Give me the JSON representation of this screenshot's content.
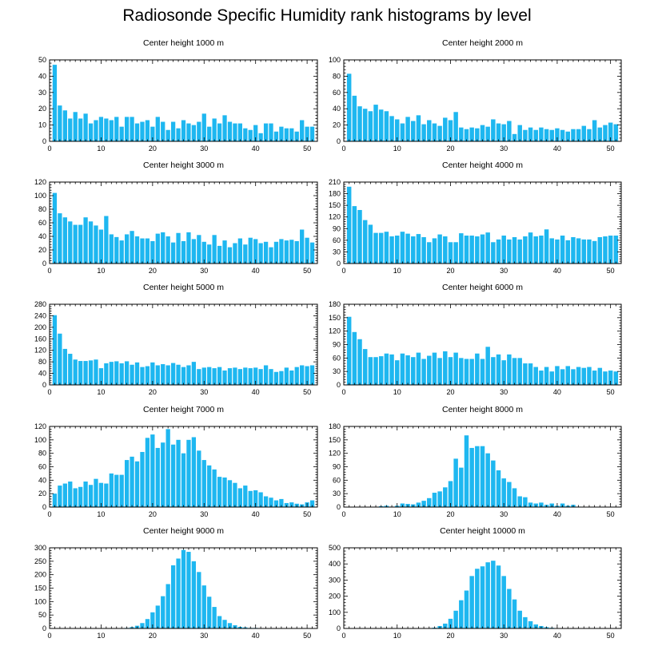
{
  "title": "Radiosonde Specific Humidity rank histograms by level",
  "bar_color": "#1eb7f0",
  "chart_data": [
    {
      "type": "bar",
      "title": "Center height 1000 m",
      "xlabel": "",
      "ylabel": "",
      "xlim": [
        0,
        52
      ],
      "ylim": [
        0,
        50
      ],
      "x": [
        1,
        2,
        3,
        4,
        5,
        6,
        7,
        8,
        9,
        10,
        11,
        12,
        13,
        14,
        15,
        16,
        17,
        18,
        19,
        20,
        21,
        22,
        23,
        24,
        25,
        26,
        27,
        28,
        29,
        30,
        31,
        32,
        33,
        34,
        35,
        36,
        37,
        38,
        39,
        40,
        41,
        42,
        43,
        44,
        45,
        46,
        47,
        48,
        49,
        50,
        51
      ],
      "values": [
        47,
        22,
        19,
        14,
        18,
        14,
        17,
        11,
        13,
        15,
        14,
        13,
        15,
        9,
        15,
        15,
        11,
        12,
        13,
        9,
        15,
        12,
        7,
        12,
        8,
        13,
        11,
        10,
        12,
        17,
        9,
        14,
        11,
        16,
        12,
        11,
        11,
        8,
        7,
        10,
        5,
        11,
        11,
        6,
        9,
        8,
        8,
        6,
        13,
        9,
        9
      ],
      "xticks": [
        "0",
        "10",
        "20",
        "30",
        "40",
        "50"
      ],
      "yticks": [
        "0",
        "10",
        "20",
        "30",
        "40",
        "50"
      ]
    },
    {
      "type": "bar",
      "title": "Center height 2000 m",
      "xlabel": "",
      "ylabel": "",
      "xlim": [
        0,
        52
      ],
      "ylim": [
        0,
        100
      ],
      "x": [
        1,
        2,
        3,
        4,
        5,
        6,
        7,
        8,
        9,
        10,
        11,
        12,
        13,
        14,
        15,
        16,
        17,
        18,
        19,
        20,
        21,
        22,
        23,
        24,
        25,
        26,
        27,
        28,
        29,
        30,
        31,
        32,
        33,
        34,
        35,
        36,
        37,
        38,
        39,
        40,
        41,
        42,
        43,
        44,
        45,
        46,
        47,
        48,
        49,
        50,
        51
      ],
      "values": [
        83,
        56,
        43,
        40,
        37,
        45,
        39,
        37,
        31,
        27,
        22,
        30,
        25,
        32,
        21,
        26,
        22,
        19,
        29,
        26,
        36,
        17,
        15,
        17,
        16,
        20,
        18,
        27,
        22,
        21,
        25,
        9,
        20,
        14,
        17,
        14,
        17,
        15,
        14,
        16,
        14,
        12,
        15,
        15,
        19,
        15,
        26,
        17,
        20,
        23,
        21
      ],
      "xticks": [
        "0",
        "10",
        "20",
        "30",
        "40",
        "50"
      ],
      "yticks": [
        "0",
        "20",
        "40",
        "60",
        "80",
        "100"
      ]
    },
    {
      "type": "bar",
      "title": "Center height 3000 m",
      "xlabel": "",
      "ylabel": "",
      "xlim": [
        0,
        52
      ],
      "ylim": [
        0,
        120
      ],
      "x": [
        1,
        2,
        3,
        4,
        5,
        6,
        7,
        8,
        9,
        10,
        11,
        12,
        13,
        14,
        15,
        16,
        17,
        18,
        19,
        20,
        21,
        22,
        23,
        24,
        25,
        26,
        27,
        28,
        29,
        30,
        31,
        32,
        33,
        34,
        35,
        36,
        37,
        38,
        39,
        40,
        41,
        42,
        43,
        44,
        45,
        46,
        47,
        48,
        49,
        50,
        51
      ],
      "values": [
        104,
        74,
        68,
        62,
        57,
        57,
        68,
        62,
        56,
        50,
        70,
        43,
        39,
        34,
        43,
        48,
        40,
        37,
        37,
        33,
        44,
        46,
        40,
        31,
        45,
        33,
        46,
        36,
        42,
        32,
        28,
        42,
        26,
        34,
        24,
        30,
        37,
        28,
        38,
        36,
        30,
        32,
        24,
        32,
        36,
        34,
        35,
        33,
        50,
        38,
        31
      ],
      "xticks": [
        "0",
        "10",
        "20",
        "30",
        "40",
        "50"
      ],
      "yticks": [
        "0",
        "20",
        "40",
        "60",
        "80",
        "100",
        "120"
      ]
    },
    {
      "type": "bar",
      "title": "Center height 4000 m",
      "xlabel": "",
      "ylabel": "",
      "xlim": [
        0,
        52
      ],
      "ylim": [
        0,
        210
      ],
      "x": [
        1,
        2,
        3,
        4,
        5,
        6,
        7,
        8,
        9,
        10,
        11,
        12,
        13,
        14,
        15,
        16,
        17,
        18,
        19,
        20,
        21,
        22,
        23,
        24,
        25,
        26,
        27,
        28,
        29,
        30,
        31,
        32,
        33,
        34,
        35,
        36,
        37,
        38,
        39,
        40,
        41,
        42,
        43,
        44,
        45,
        46,
        47,
        48,
        49,
        50,
        51
      ],
      "values": [
        198,
        148,
        138,
        112,
        100,
        79,
        79,
        82,
        70,
        72,
        82,
        77,
        70,
        76,
        68,
        55,
        65,
        75,
        70,
        55,
        55,
        78,
        72,
        72,
        70,
        75,
        80,
        55,
        62,
        72,
        62,
        68,
        62,
        70,
        80,
        70,
        72,
        88,
        65,
        62,
        72,
        60,
        68,
        65,
        62,
        62,
        58,
        68,
        70,
        72,
        72
      ],
      "xticks": [
        "0",
        "10",
        "20",
        "30",
        "40",
        "50"
      ],
      "yticks": [
        "0",
        "30",
        "60",
        "90",
        "120",
        "150",
        "180",
        "210"
      ]
    },
    {
      "type": "bar",
      "title": "Center height 5000 m",
      "xlabel": "",
      "ylabel": "",
      "xlim": [
        0,
        52
      ],
      "ylim": [
        0,
        280
      ],
      "x": [
        1,
        2,
        3,
        4,
        5,
        6,
        7,
        8,
        9,
        10,
        11,
        12,
        13,
        14,
        15,
        16,
        17,
        18,
        19,
        20,
        21,
        22,
        23,
        24,
        25,
        26,
        27,
        28,
        29,
        30,
        31,
        32,
        33,
        34,
        35,
        36,
        37,
        38,
        39,
        40,
        41,
        42,
        43,
        44,
        45,
        46,
        47,
        48,
        49,
        50,
        51
      ],
      "values": [
        242,
        178,
        125,
        108,
        88,
        83,
        83,
        85,
        88,
        58,
        75,
        80,
        82,
        75,
        82,
        70,
        78,
        62,
        65,
        78,
        68,
        72,
        68,
        76,
        70,
        62,
        68,
        80,
        55,
        60,
        62,
        58,
        62,
        50,
        58,
        60,
        55,
        60,
        58,
        60,
        55,
        68,
        55,
        45,
        48,
        60,
        50,
        62,
        68,
        65,
        68
      ],
      "xticks": [
        "0",
        "10",
        "20",
        "30",
        "40",
        "50"
      ],
      "yticks": [
        "0",
        "40",
        "80",
        "120",
        "160",
        "200",
        "240",
        "280"
      ]
    },
    {
      "type": "bar",
      "title": "Center height 6000 m",
      "xlabel": "",
      "ylabel": "",
      "xlim": [
        0,
        52
      ],
      "ylim": [
        0,
        180
      ],
      "x": [
        1,
        2,
        3,
        4,
        5,
        6,
        7,
        8,
        9,
        10,
        11,
        12,
        13,
        14,
        15,
        16,
        17,
        18,
        19,
        20,
        21,
        22,
        23,
        24,
        25,
        26,
        27,
        28,
        29,
        30,
        31,
        32,
        33,
        34,
        35,
        36,
        37,
        38,
        39,
        40,
        41,
        42,
        43,
        44,
        45,
        46,
        47,
        48,
        49,
        50,
        51
      ],
      "values": [
        152,
        118,
        102,
        80,
        62,
        62,
        64,
        70,
        68,
        55,
        70,
        66,
        62,
        72,
        58,
        65,
        72,
        60,
        75,
        62,
        72,
        60,
        58,
        58,
        70,
        58,
        85,
        62,
        68,
        55,
        68,
        60,
        60,
        48,
        48,
        40,
        32,
        40,
        30,
        42,
        35,
        42,
        35,
        40,
        38,
        40,
        32,
        38,
        30,
        32,
        30
      ],
      "xticks": [
        "0",
        "10",
        "20",
        "30",
        "40",
        "50"
      ],
      "yticks": [
        "0",
        "30",
        "60",
        "90",
        "120",
        "150",
        "180"
      ]
    },
    {
      "type": "bar",
      "title": "Center height 7000 m",
      "xlabel": "",
      "ylabel": "",
      "xlim": [
        0,
        52
      ],
      "ylim": [
        0,
        120
      ],
      "x": [
        1,
        2,
        3,
        4,
        5,
        6,
        7,
        8,
        9,
        10,
        11,
        12,
        13,
        14,
        15,
        16,
        17,
        18,
        19,
        20,
        21,
        22,
        23,
        24,
        25,
        26,
        27,
        28,
        29,
        30,
        31,
        32,
        33,
        34,
        35,
        36,
        37,
        38,
        39,
        40,
        41,
        42,
        43,
        44,
        45,
        46,
        47,
        48,
        49,
        50,
        51
      ],
      "values": [
        20,
        32,
        35,
        38,
        28,
        30,
        38,
        33,
        42,
        36,
        35,
        50,
        48,
        48,
        70,
        75,
        68,
        82,
        103,
        108,
        88,
        96,
        116,
        93,
        100,
        80,
        100,
        104,
        84,
        70,
        62,
        56,
        45,
        44,
        40,
        36,
        28,
        32,
        24,
        25,
        22,
        16,
        14,
        10,
        12,
        6,
        7,
        5,
        4,
        7,
        10
      ],
      "xticks": [
        "0",
        "10",
        "20",
        "30",
        "40",
        "50"
      ],
      "yticks": [
        "0",
        "20",
        "40",
        "60",
        "80",
        "100",
        "120"
      ]
    },
    {
      "type": "bar",
      "title": "Center height 8000 m",
      "xlabel": "",
      "ylabel": "",
      "xlim": [
        0,
        52
      ],
      "ylim": [
        0,
        180
      ],
      "x": [
        1,
        2,
        3,
        4,
        5,
        6,
        7,
        8,
        9,
        10,
        11,
        12,
        13,
        14,
        15,
        16,
        17,
        18,
        19,
        20,
        21,
        22,
        23,
        24,
        25,
        26,
        27,
        28,
        29,
        30,
        31,
        32,
        33,
        34,
        35,
        36,
        37,
        38,
        39,
        40,
        41,
        42,
        43,
        44,
        45,
        46,
        47,
        48,
        49,
        50,
        51
      ],
      "values": [
        0,
        0,
        0,
        0,
        0,
        0,
        2,
        3,
        1,
        3,
        8,
        7,
        6,
        10,
        14,
        20,
        32,
        35,
        44,
        58,
        108,
        88,
        160,
        132,
        136,
        136,
        120,
        104,
        82,
        64,
        56,
        42,
        24,
        22,
        10,
        8,
        10,
        5,
        8,
        3,
        8,
        3,
        5,
        1,
        0,
        0,
        0,
        0,
        0,
        0,
        0
      ],
      "xticks": [
        "0",
        "10",
        "20",
        "30",
        "40",
        "50"
      ],
      "yticks": [
        "0",
        "30",
        "60",
        "90",
        "120",
        "150",
        "180"
      ]
    },
    {
      "type": "bar",
      "title": "Center height 9000 m",
      "xlabel": "",
      "ylabel": "",
      "xlim": [
        0,
        52
      ],
      "ylim": [
        0,
        300
      ],
      "x": [
        1,
        2,
        3,
        4,
        5,
        6,
        7,
        8,
        9,
        10,
        11,
        12,
        13,
        14,
        15,
        16,
        17,
        18,
        19,
        20,
        21,
        22,
        23,
        24,
        25,
        26,
        27,
        28,
        29,
        30,
        31,
        32,
        33,
        34,
        35,
        36,
        37,
        38,
        39,
        40,
        41,
        42,
        43,
        44,
        45,
        46,
        47,
        48,
        49,
        50,
        51
      ],
      "values": [
        0,
        0,
        0,
        0,
        0,
        0,
        0,
        0,
        0,
        0,
        0,
        0,
        0,
        0,
        2,
        5,
        10,
        20,
        35,
        60,
        85,
        120,
        165,
        235,
        260,
        292,
        285,
        250,
        210,
        160,
        118,
        80,
        46,
        32,
        20,
        12,
        6,
        4,
        2,
        2,
        1,
        0,
        0,
        0,
        0,
        0,
        0,
        0,
        0,
        0,
        0
      ],
      "xticks": [
        "0",
        "10",
        "20",
        "30",
        "40",
        "50"
      ],
      "yticks": [
        "0",
        "50",
        "100",
        "150",
        "200",
        "250",
        "300"
      ]
    },
    {
      "type": "bar",
      "title": "Center height 10000 m",
      "xlabel": "",
      "ylabel": "",
      "xlim": [
        0,
        52
      ],
      "ylim": [
        0,
        500
      ],
      "x": [
        1,
        2,
        3,
        4,
        5,
        6,
        7,
        8,
        9,
        10,
        11,
        12,
        13,
        14,
        15,
        16,
        17,
        18,
        19,
        20,
        21,
        22,
        23,
        24,
        25,
        26,
        27,
        28,
        29,
        30,
        31,
        32,
        33,
        34,
        35,
        36,
        37,
        38,
        39,
        40,
        41,
        42,
        43,
        44,
        45,
        46,
        47,
        48,
        49,
        50,
        51
      ],
      "values": [
        0,
        0,
        0,
        0,
        0,
        0,
        0,
        0,
        0,
        0,
        0,
        0,
        0,
        0,
        0,
        0,
        5,
        15,
        30,
        60,
        110,
        175,
        235,
        325,
        370,
        385,
        410,
        420,
        390,
        325,
        245,
        180,
        110,
        70,
        45,
        25,
        15,
        8,
        4,
        2,
        1,
        0,
        0,
        0,
        0,
        0,
        0,
        0,
        0,
        0,
        0
      ],
      "xticks": [
        "0",
        "10",
        "20",
        "30",
        "40",
        "50"
      ],
      "yticks": [
        "0",
        "100",
        "200",
        "300",
        "400",
        "500"
      ]
    }
  ]
}
